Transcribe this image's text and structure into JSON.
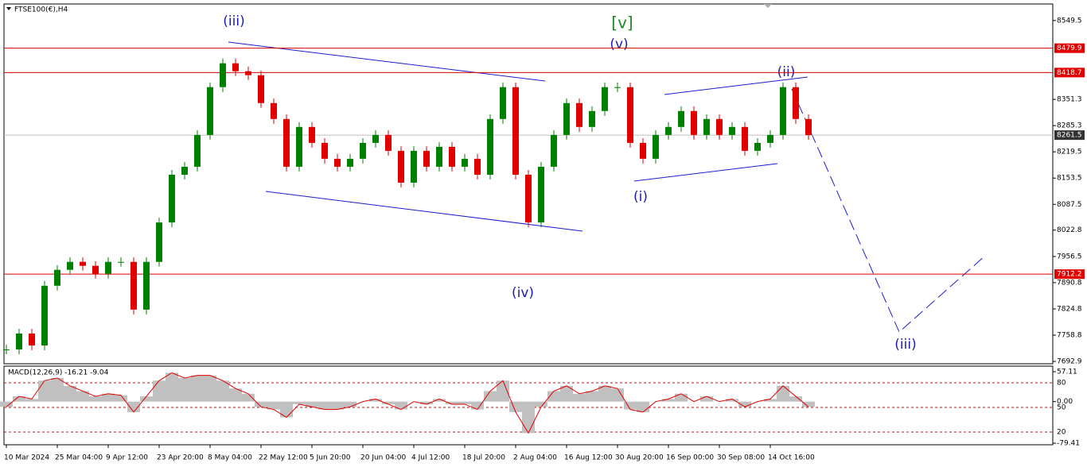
{
  "chart_data": {
    "type": "candlestick",
    "title": "FTSE100(€),H4",
    "categories": [
      "10 Mar 2024",
      null,
      null,
      null,
      "25 Mar 04:00",
      null,
      null,
      null,
      "9 Apr 12:00",
      null,
      null,
      null,
      "23 Apr 20:00",
      null,
      null,
      null,
      "8 May 04:00",
      null,
      null,
      null,
      "22 May 12:00",
      null,
      null,
      null,
      "5 Jun 20:00",
      null,
      null,
      null,
      "20 Jun 04:00",
      null,
      null,
      null,
      "4 Jul 12:00",
      null,
      null,
      null,
      "18 Jul 20:00",
      null,
      null,
      null,
      "2 Aug 04:00",
      null,
      null,
      null,
      "16 Aug 12:00",
      null,
      null,
      null,
      "30 Aug 20:00",
      null,
      null,
      null,
      "16 Sep 00:00",
      null,
      null,
      null,
      "30 Sep 08:00",
      null,
      null,
      null,
      "14 Oct 16:00",
      null,
      null,
      null
    ],
    "values": [
      7723,
      7763,
      7733,
      7883,
      7923,
      7943,
      7933,
      7913,
      7943,
      7943,
      7823,
      7943,
      8042,
      8162,
      8182,
      8262,
      8382,
      8442,
      8422,
      8412,
      8342,
      8302,
      8182,
      8282,
      8242,
      8202,
      8182,
      8202,
      8242,
      8262,
      8222,
      8142,
      8222,
      8182,
      8232,
      8182,
      8202,
      8162,
      8302,
      8382,
      8162,
      8042,
      8182,
      8262,
      8342,
      8282,
      8322,
      8382,
      8382,
      8242,
      8202,
      8262,
      8282,
      8322,
      8262,
      8302,
      8262,
      8282,
      8222,
      8242,
      8262,
      8382,
      8302,
      8261.5
    ],
    "up_color": "#008000",
    "down_color": "#e00000",
    "ylim": [
      7687,
      8591
    ],
    "yticks": [
      8549.5,
      8351.3,
      8285.3,
      8219.5,
      8153.5,
      8087.5,
      8022.8,
      7956.5,
      7890.8,
      7824.8,
      7758.8,
      7692.9
    ],
    "levels": [
      {
        "value": 8479.9,
        "color": "#e00000"
      },
      {
        "value": 8418.7,
        "color": "#e00000"
      },
      {
        "value": 7912.2,
        "color": "#e00000"
      },
      {
        "value": 8261.5,
        "color": "#333333"
      }
    ],
    "annotations": [
      "(iii)",
      "[v]",
      "(v)",
      "(ii)",
      "(i)",
      "(iv)",
      "(iii)"
    ],
    "macd": {
      "title": "MACD(12,26,9) -16.21 -9.04",
      "values": [
        -10,
        10,
        5,
        40,
        45,
        30,
        20,
        10,
        15,
        12,
        -20,
        10,
        40,
        55,
        45,
        50,
        50,
        40,
        25,
        15,
        -10,
        -15,
        -30,
        -5,
        -10,
        -15,
        -15,
        -10,
        0,
        5,
        -5,
        -15,
        0,
        -5,
        5,
        -5,
        -5,
        -15,
        20,
        40,
        -20,
        -60,
        -10,
        20,
        30,
        15,
        20,
        30,
        25,
        -15,
        -20,
        0,
        5,
        15,
        0,
        10,
        0,
        5,
        -10,
        0,
        5,
        30,
        10,
        -10
      ],
      "ylim": [
        -82.4,
        67.7
      ],
      "yticks": [
        57.11,
        {
          "value": 0,
          "label": "0.00"
        },
        -79.41
      ],
      "y2lim": [
        4.5,
        100.3
      ],
      "y2ticks": [
        80,
        50,
        20
      ]
    }
  }
}
